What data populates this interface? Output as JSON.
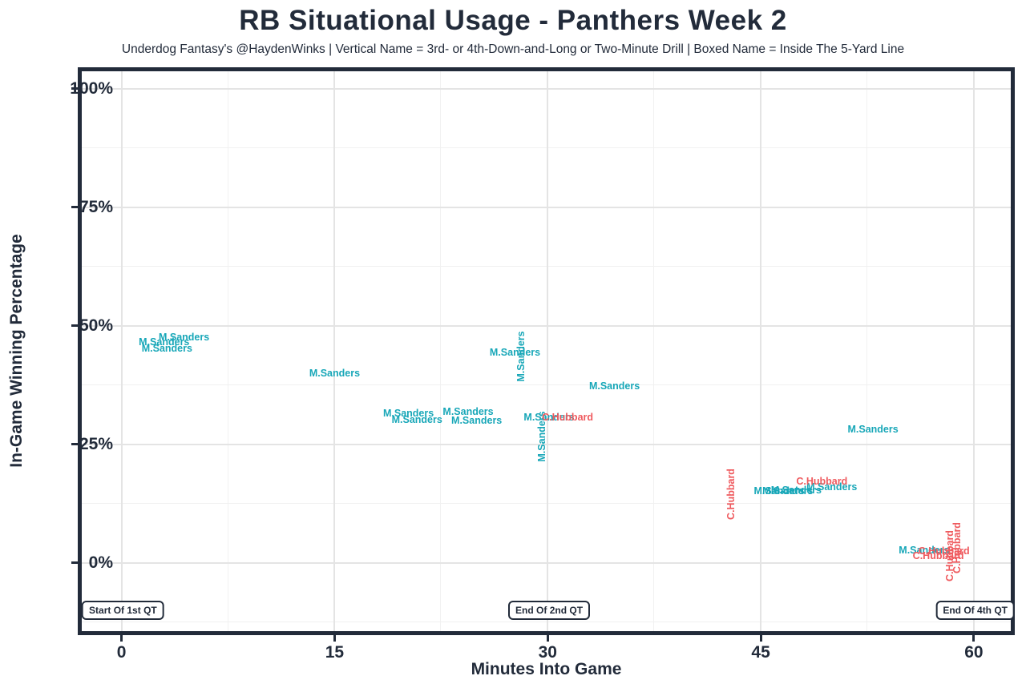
{
  "header": {
    "title": "RB Situational Usage - Panthers Week 2",
    "subtitle": "Underdog Fantasy's @HaydenWinks | Vertical Name = 3rd- or 4th-Down-and-Long or Two-Minute Drill | Boxed Name = Inside The 5-Yard Line"
  },
  "chart_data": {
    "type": "scatter",
    "title": "RB Situational Usage - Panthers Week 2",
    "subtitle": "Underdog Fantasy's @HaydenWinks | Vertical Name = 3rd- or 4th-Down-and-Long or Two-Minute Drill | Boxed Name = Inside The 5-Yard Line",
    "xlabel": "Minutes Into Game",
    "ylabel": "In-Game Winning Percentage",
    "xlim": [
      -2.8,
      62.6
    ],
    "ylim": [
      -14.4,
      103.7
    ],
    "x_tick_values": [
      0,
      15,
      30,
      45,
      60
    ],
    "x_tick_labels": [
      "0",
      "15",
      "30",
      "45",
      "60"
    ],
    "y_tick_values": [
      0,
      25,
      50,
      75,
      100
    ],
    "y_tick_labels": [
      "0%",
      "25%",
      "50%",
      "75%",
      "100%"
    ],
    "x_minor_gridlines": [
      7.5,
      22.5,
      37.5,
      52.5
    ],
    "y_minor_gridlines": [
      -12.5,
      12.5,
      37.5,
      62.5,
      87.5
    ],
    "grid": true,
    "legend": "none",
    "point_style": "text-label",
    "legend_note_vertical": "Vertical Name = 3rd- or 4th-Down-and-Long or Two-Minute Drill",
    "legend_note_boxed": "Boxed Name = Inside The 5-Yard Line",
    "series": [
      {
        "name": "M.Sanders",
        "color": "#18A7B8",
        "points": [
          {
            "x": 3.0,
            "y": 46.6,
            "rotated": false
          },
          {
            "x": 4.4,
            "y": 47.6,
            "rotated": false
          },
          {
            "x": 3.2,
            "y": 45.3,
            "rotated": false
          },
          {
            "x": 15.0,
            "y": 40.0,
            "rotated": false
          },
          {
            "x": 20.2,
            "y": 31.6,
            "rotated": false
          },
          {
            "x": 20.8,
            "y": 30.2,
            "rotated": false
          },
          {
            "x": 24.4,
            "y": 31.9,
            "rotated": false
          },
          {
            "x": 25.0,
            "y": 30.1,
            "rotated": false
          },
          {
            "x": 27.7,
            "y": 44.4,
            "rotated": false
          },
          {
            "x": 28.1,
            "y": 43.6,
            "rotated": true
          },
          {
            "x": 34.7,
            "y": 37.3,
            "rotated": false
          },
          {
            "x": 30.1,
            "y": 30.7,
            "rotated": false
          },
          {
            "x": 29.6,
            "y": 26.7,
            "rotated": true
          },
          {
            "x": 46.3,
            "y": 15.2,
            "rotated": false
          },
          {
            "x": 46.9,
            "y": 15.2,
            "rotated": false
          },
          {
            "x": 47.5,
            "y": 15.4,
            "rotated": false
          },
          {
            "x": 50.0,
            "y": 16.0,
            "rotated": false
          },
          {
            "x": 52.9,
            "y": 28.2,
            "rotated": false
          },
          {
            "x": 56.5,
            "y": 2.7,
            "rotated": false
          }
        ]
      },
      {
        "name": "C.Hubbard",
        "color": "#EF5A5E",
        "points": [
          {
            "x": 31.4,
            "y": 30.7,
            "rotated": false
          },
          {
            "x": 42.9,
            "y": 14.5,
            "rotated": true
          },
          {
            "x": 49.3,
            "y": 17.2,
            "rotated": false
          },
          {
            "x": 57.9,
            "y": 2.5,
            "rotated": false
          },
          {
            "x": 57.5,
            "y": 1.5,
            "rotated": false
          },
          {
            "x": 58.3,
            "y": 1.4,
            "rotated": true
          },
          {
            "x": 58.8,
            "y": 3.2,
            "rotated": true
          }
        ]
      }
    ],
    "annotations": [
      {
        "label": "Start Of 1st QT",
        "x": 0.1,
        "y": -10.0,
        "boxed": true
      },
      {
        "label": "End Of 2nd QT",
        "x": 30.1,
        "y": -10.0,
        "boxed": true
      },
      {
        "label": "End Of 4th QT",
        "x": 60.1,
        "y": -10.0,
        "boxed": true
      }
    ],
    "colors": {
      "M.Sanders": "#18A7B8",
      "C.Hubbard": "#EF5A5E",
      "ink": "#222B3A",
      "grid_major": "#E4E4E4",
      "grid_minor": "#F1F1F1",
      "plot_background": "#FFFFFF"
    }
  }
}
